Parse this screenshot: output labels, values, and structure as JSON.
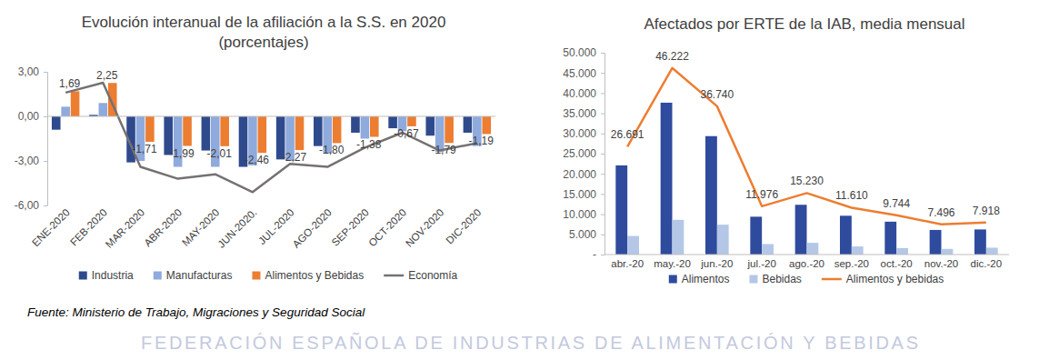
{
  "chart_data": [
    {
      "type": "bar",
      "title": "Evolución interanual de la afiliación a la S.S. en 2020",
      "subtitle": "(porcentajes)",
      "categories": [
        "ENE-2020",
        "FEB-2020",
        "MAR-2020",
        "ABR-2020",
        "MAY-2020",
        "JUN-2020.",
        "JUL-2020",
        "AGO-2020",
        "SEP-2020",
        "OCT-2020",
        "NOV-2020",
        "DIC-2020"
      ],
      "series": [
        {
          "name": "Industria",
          "type": "bar",
          "color": "#2F4A8C",
          "values": [
            -0.9,
            0.1,
            -3.1,
            -2.6,
            -2.3,
            -3.4,
            -2.9,
            -2.0,
            -1.1,
            -0.8,
            -1.3,
            -1.1
          ]
        },
        {
          "name": "Manufacturas",
          "type": "bar",
          "color": "#8FAADC",
          "values": [
            0.65,
            0.9,
            -3.0,
            -3.4,
            -3.4,
            -3.3,
            -3.0,
            -2.5,
            -1.5,
            -1.0,
            -2.4,
            -2.0
          ]
        },
        {
          "name": "Alimentos y Bebidas",
          "type": "bar",
          "color": "#ED7D31",
          "values": [
            1.69,
            2.25,
            -1.71,
            -1.99,
            -2.01,
            -2.46,
            -2.27,
            -1.8,
            -1.38,
            -0.67,
            -1.79,
            -1.19
          ],
          "data_labels": true,
          "value_labels": [
            "1,69",
            "2,25",
            "-1,71",
            "-1,99",
            "-2,01",
            "-2,46",
            "-2,27",
            "-1,80",
            "-1,38",
            "-0,67",
            "-1,79",
            "-1,19"
          ]
        },
        {
          "name": "Economía",
          "type": "line",
          "color": "#767171",
          "values": [
            1.6,
            2.27,
            -3.4,
            -4.2,
            -3.9,
            -5.1,
            -3.2,
            -3.4,
            -2.1,
            -1.1,
            -2.3,
            -1.8
          ]
        }
      ],
      "ylim": [
        -6,
        3
      ],
      "yticks": [
        {
          "value": -6,
          "label": "-6,00"
        },
        {
          "value": -3,
          "label": "-3,00"
        },
        {
          "value": 0,
          "label": "0,00"
        },
        {
          "value": 3,
          "label": "3,00"
        }
      ],
      "grid": false,
      "legend": "bottom"
    },
    {
      "type": "bar",
      "title": "Afectados por ERTE de la IAB, media mensual",
      "categories": [
        "abr.-20",
        "may.-20",
        "jun.-20",
        "jul.-20",
        "ago.-20",
        "sep.-20",
        "oct.-20",
        "nov.-20",
        "dic.-20"
      ],
      "series": [
        {
          "name": "Alimentos",
          "type": "bar",
          "color": "#2F4B9E",
          "values": [
            22091,
            37622,
            29340,
            9376,
            12330,
            9610,
            8144,
            6096,
            6218
          ]
        },
        {
          "name": "Bebidas",
          "type": "bar",
          "color": "#B4C7E7",
          "values": [
            4600,
            8600,
            7400,
            2600,
            2900,
            2000,
            1600,
            1400,
            1700
          ]
        },
        {
          "name": "Alimentos y bebidas",
          "type": "line",
          "color": "#ED7D31",
          "values": [
            26691,
            46222,
            36740,
            11976,
            15230,
            11610,
            9744,
            7496,
            7918
          ],
          "data_labels": true,
          "value_labels": [
            "26.691",
            "46.222",
            "36.740",
            "11.976",
            "15.230",
            "11.610",
            "9.744",
            "7.496",
            "7.918"
          ]
        }
      ],
      "ylim": [
        0,
        50000
      ],
      "yticks": [
        {
          "value": 0,
          "label": "-"
        },
        {
          "value": 5000,
          "label": "5.000"
        },
        {
          "value": 10000,
          "label": "10.000"
        },
        {
          "value": 15000,
          "label": "15.000"
        },
        {
          "value": 20000,
          "label": "20.000"
        },
        {
          "value": 25000,
          "label": "25.000"
        },
        {
          "value": 30000,
          "label": "30.000"
        },
        {
          "value": 35000,
          "label": "35.000"
        },
        {
          "value": 40000,
          "label": "40.000"
        },
        {
          "value": 45000,
          "label": "45.000"
        },
        {
          "value": 50000,
          "label": "50.000"
        }
      ],
      "grid": false,
      "legend": "bottom"
    }
  ],
  "source": "Fuente: Ministerio de Trabajo, Migraciones y Seguridad Social",
  "footer": "FEDERACIÓN ESPAÑOLA DE INDUSTRIAS DE ALIMENTACIÓN Y BEBIDAS"
}
